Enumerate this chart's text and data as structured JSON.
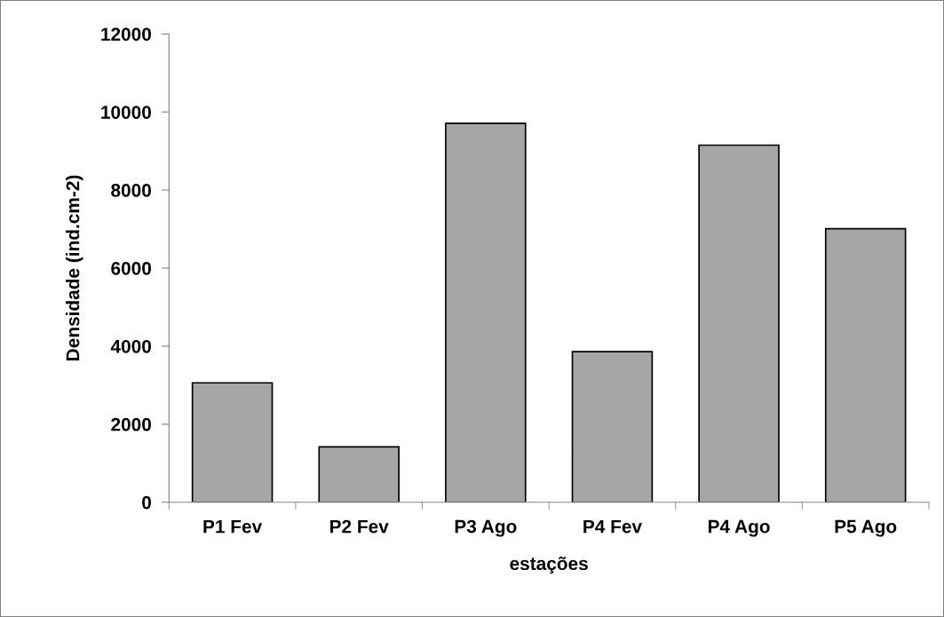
{
  "chart_data": {
    "type": "bar",
    "xlabel": "estações",
    "ylabel": "Densidade (ind.cm-2)",
    "categories": [
      "P1 Fev",
      "P2 Fev",
      "P3 Ago",
      "P4 Fev",
      "P4 Ago",
      "P5 Ago"
    ],
    "values": [
      3060,
      1420,
      9710,
      3860,
      9150,
      7010
    ],
    "color": "#a6a6a6",
    "ylim": [
      0,
      12000
    ],
    "yticks": [
      0,
      2000,
      4000,
      6000,
      8000,
      10000,
      12000
    ],
    "grid": false,
    "legend": false
  }
}
